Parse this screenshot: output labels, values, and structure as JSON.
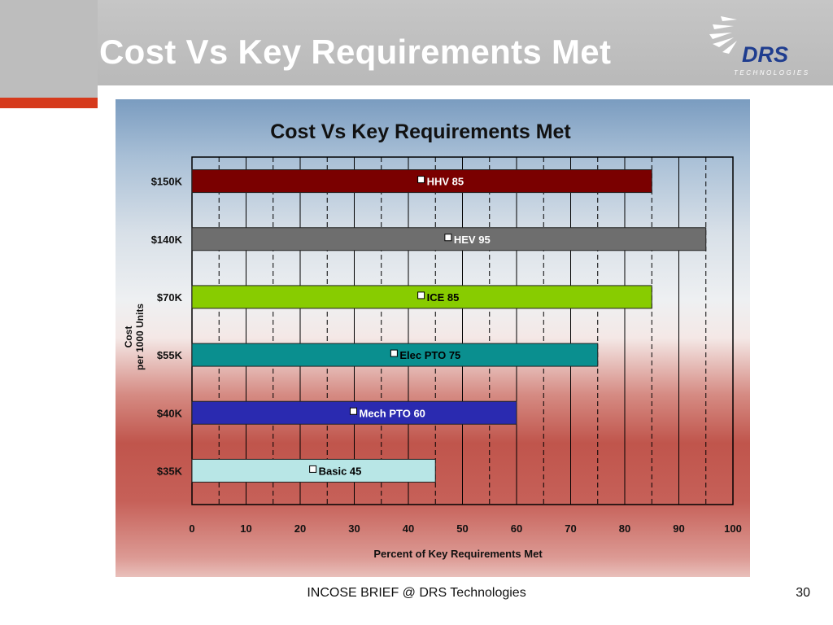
{
  "slide": {
    "title": "Cost Vs Key Requirements Met",
    "footer": "INCOSE BRIEF @ DRS Technologies",
    "page_number": "30"
  },
  "logo": {
    "name": "DRS",
    "subtitle": "TECHNOLOGIES"
  },
  "colors": {
    "accent_red": "#d63a1c",
    "header_gray": "#bdbdbd"
  },
  "chart_data": {
    "type": "bar",
    "orientation": "horizontal",
    "title": "Cost Vs Key Requirements Met",
    "xlabel": "Percent of Key Requirements Met",
    "ylabel_lines": [
      "Cost",
      "per 1000 Units"
    ],
    "xlim": [
      0,
      100
    ],
    "xticks": [
      0,
      10,
      20,
      30,
      40,
      50,
      60,
      70,
      80,
      90,
      100
    ],
    "grid": true,
    "categories": [
      "$150K",
      "$140K",
      "$70K",
      "$55K",
      "$40K",
      "$35K"
    ],
    "values": [
      85,
      95,
      85,
      75,
      60,
      45
    ],
    "bar_labels": [
      "HHV 85",
      "HEV 95",
      "ICE 85",
      "Elec PTO 75",
      "Mech PTO 60",
      "Basic 45"
    ],
    "bar_colors": [
      "#7a0000",
      "#6e6e6e",
      "#88cc00",
      "#0a8f8f",
      "#2a2ab0",
      "#b8e6e6"
    ],
    "label_colors": [
      "#ffffff",
      "#ffffff",
      "#000000",
      "#000000",
      "#ffffff",
      "#000000"
    ]
  }
}
